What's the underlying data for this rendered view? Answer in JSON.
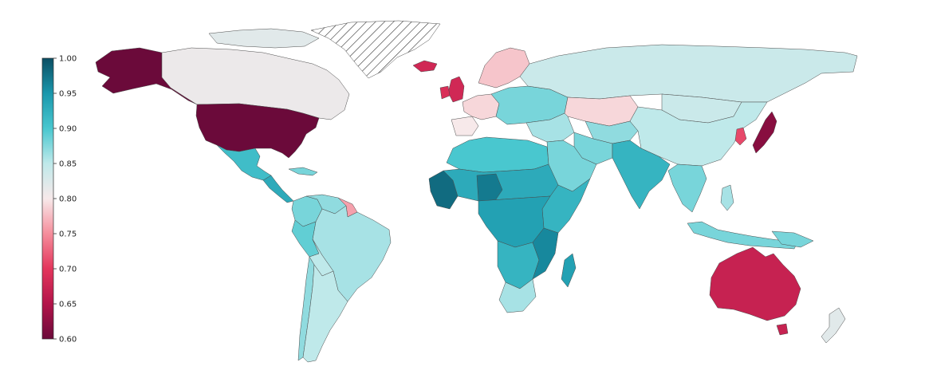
{
  "colorbar": {
    "min": 0.6,
    "max": 1.0,
    "ticks": [
      "1.00",
      "0.95",
      "0.90",
      "0.85",
      "0.80",
      "0.75",
      "0.70",
      "0.65",
      "0.60"
    ],
    "stops": [
      {
        "value": 0.6,
        "color": "#6b0a3a"
      },
      {
        "value": 0.65,
        "color": "#b3144a"
      },
      {
        "value": 0.7,
        "color": "#e3365c"
      },
      {
        "value": 0.75,
        "color": "#f58e9c"
      },
      {
        "value": 0.8,
        "color": "#f7e9ea"
      },
      {
        "value": 0.85,
        "color": "#bfe9ea"
      },
      {
        "value": 0.9,
        "color": "#49c7cf"
      },
      {
        "value": 0.95,
        "color": "#1a97ac"
      },
      {
        "value": 1.0,
        "color": "#0b4e63"
      }
    ]
  },
  "no_data_pattern": "diagonal-hatch",
  "regions": [
    {
      "id": "alaska",
      "value": 0.6
    },
    {
      "id": "canada",
      "value": 0.81
    },
    {
      "id": "canada-arctic",
      "value": 0.82
    },
    {
      "id": "greenland",
      "value": null
    },
    {
      "id": "usa",
      "value": 0.6
    },
    {
      "id": "mexico",
      "value": 0.91
    },
    {
      "id": "central-america",
      "value": 0.93
    },
    {
      "id": "cuba",
      "value": 0.88
    },
    {
      "id": "venezuela",
      "value": 0.87
    },
    {
      "id": "guianas",
      "value": 0.76
    },
    {
      "id": "colombia",
      "value": 0.88
    },
    {
      "id": "brazil",
      "value": 0.86
    },
    {
      "id": "peru",
      "value": 0.89
    },
    {
      "id": "bolivia",
      "value": 0.85
    },
    {
      "id": "argentina",
      "value": 0.85
    },
    {
      "id": "chile",
      "value": 0.87
    },
    {
      "id": "iceland",
      "value": 0.68
    },
    {
      "id": "uk",
      "value": 0.68
    },
    {
      "id": "ireland",
      "value": 0.69
    },
    {
      "id": "scandinavia",
      "value": 0.78
    },
    {
      "id": "western-europe",
      "value": 0.79
    },
    {
      "id": "spain",
      "value": 0.8
    },
    {
      "id": "eastern-europe",
      "value": 0.88
    },
    {
      "id": "russia",
      "value": 0.84
    },
    {
      "id": "kazakhstan",
      "value": 0.79
    },
    {
      "id": "central-asia",
      "value": 0.87
    },
    {
      "id": "middle-east",
      "value": 0.86
    },
    {
      "id": "arabia",
      "value": 0.88
    },
    {
      "id": "iran",
      "value": 0.88
    },
    {
      "id": "india",
      "value": 0.92
    },
    {
      "id": "china",
      "value": 0.85
    },
    {
      "id": "mongolia",
      "value": 0.84
    },
    {
      "id": "korea",
      "value": 0.71
    },
    {
      "id": "japan",
      "value": 0.62
    },
    {
      "id": "southeast-asia",
      "value": 0.88
    },
    {
      "id": "indonesia",
      "value": 0.88
    },
    {
      "id": "philippines",
      "value": 0.86
    },
    {
      "id": "north-africa",
      "value": 0.9
    },
    {
      "id": "sahel",
      "value": 0.93
    },
    {
      "id": "nigeria-niger",
      "value": 0.97
    },
    {
      "id": "west-africa-coast",
      "value": 0.98
    },
    {
      "id": "east-africa",
      "value": 0.92
    },
    {
      "id": "central-africa",
      "value": 0.94
    },
    {
      "id": "southern-africa",
      "value": 0.92
    },
    {
      "id": "mozambique",
      "value": 0.96
    },
    {
      "id": "south-africa",
      "value": 0.86
    },
    {
      "id": "madagascar",
      "value": 0.94
    },
    {
      "id": "australia",
      "value": 0.67
    },
    {
      "id": "tasmania",
      "value": 0.67
    },
    {
      "id": "new-zealand",
      "value": 0.82
    },
    {
      "id": "new-guinea",
      "value": 0.88
    }
  ]
}
